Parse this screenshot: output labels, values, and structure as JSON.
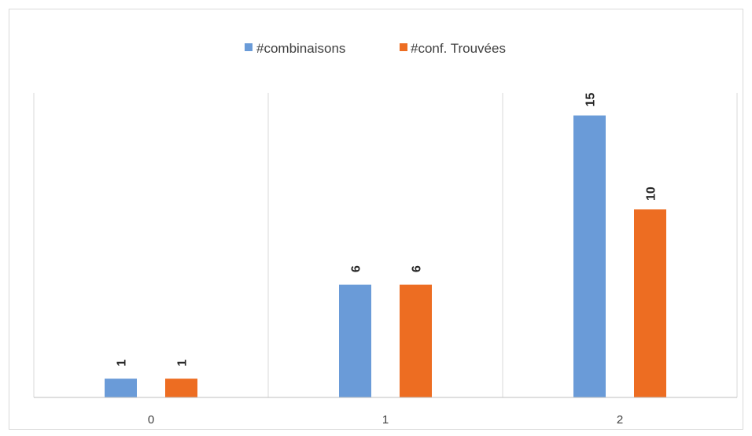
{
  "chart_data": {
    "type": "bar",
    "categories": [
      "0",
      "1",
      "2"
    ],
    "series": [
      {
        "name": "#combinaisons",
        "values": [
          1,
          6,
          15
        ],
        "color": "#6A9BD8"
      },
      {
        "name": "#conf. Trouvées",
        "values": [
          1,
          6,
          10
        ],
        "color": "#ED6D22"
      }
    ],
    "title": "",
    "xlabel": "",
    "ylabel": "",
    "ylim": [
      0,
      16.2
    ],
    "grid": "vertical category separators",
    "legend_position": "top-center",
    "data_labels": true,
    "data_label_rotation": "vertical"
  }
}
